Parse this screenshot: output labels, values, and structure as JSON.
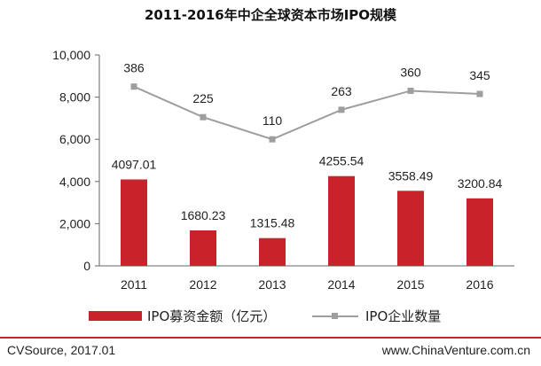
{
  "chart_data": {
    "type": "bar+line",
    "title": "2011-2016年中企全球资本市场IPO规模",
    "categories": [
      "2011",
      "2012",
      "2013",
      "2014",
      "2015",
      "2016"
    ],
    "y_ticks": [
      "10,000",
      "8,000",
      "6,000",
      "4,000",
      "2,000",
      "0"
    ],
    "ylim": [
      0,
      10000
    ],
    "series": [
      {
        "name": "IPO募资金额（亿元）",
        "type": "bar",
        "color": "#c8222b",
        "values": [
          4097.01,
          1680.23,
          1315.48,
          4255.54,
          3558.49,
          3200.84
        ],
        "labels": [
          "4097.01",
          "1680.23",
          "1315.48",
          "4255.54",
          "3558.49",
          "3200.84"
        ]
      },
      {
        "name": "IPO企业数量",
        "type": "line",
        "color": "#9e9e9e",
        "values": [
          386,
          225,
          110,
          263,
          360,
          345
        ],
        "labels": [
          "386",
          "225",
          "110",
          "263",
          "360",
          "345"
        ],
        "plotted_position_on_left_axis": [
          8500,
          7050,
          6000,
          7400,
          8300,
          8150
        ]
      }
    ],
    "legend_position": "bottom",
    "grid": false
  },
  "footer": {
    "source": "CVSource, 2017.01",
    "website": "www.ChinaVenture.com.cn"
  }
}
